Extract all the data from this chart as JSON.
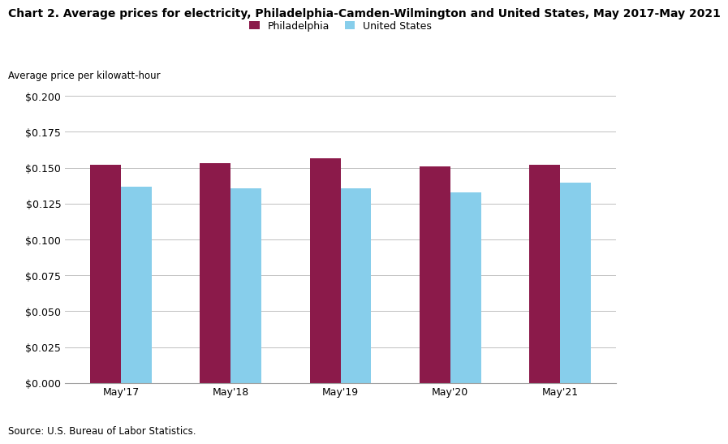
{
  "title": "Chart 2. Average prices for electricity, Philadelphia-Camden-Wilmington and United States, May 2017-May 2021",
  "ylabel": "Average price per kilowatt-hour",
  "source": "Source: U.S. Bureau of Labor Statistics.",
  "categories": [
    "May'17",
    "May'18",
    "May'19",
    "May'20",
    "May'21"
  ],
  "philadelphia": [
    0.1522,
    0.1531,
    0.1563,
    0.1511,
    0.1522
  ],
  "us": [
    0.1366,
    0.1355,
    0.1355,
    0.133,
    0.1393
  ],
  "philadelphia_color": "#8B1A4A",
  "us_color": "#87CEEB",
  "legend_labels": [
    "Philadelphia",
    "United States"
  ],
  "ylim": [
    0.0,
    0.2
  ],
  "yticks": [
    0.0,
    0.025,
    0.05,
    0.075,
    0.1,
    0.125,
    0.15,
    0.175,
    0.2
  ],
  "bar_width": 0.28,
  "title_fontsize": 10,
  "axis_label_fontsize": 8.5,
  "tick_fontsize": 9,
  "legend_fontsize": 9,
  "source_fontsize": 8.5,
  "background_color": "#ffffff",
  "grid_color": "#c0c0c0"
}
